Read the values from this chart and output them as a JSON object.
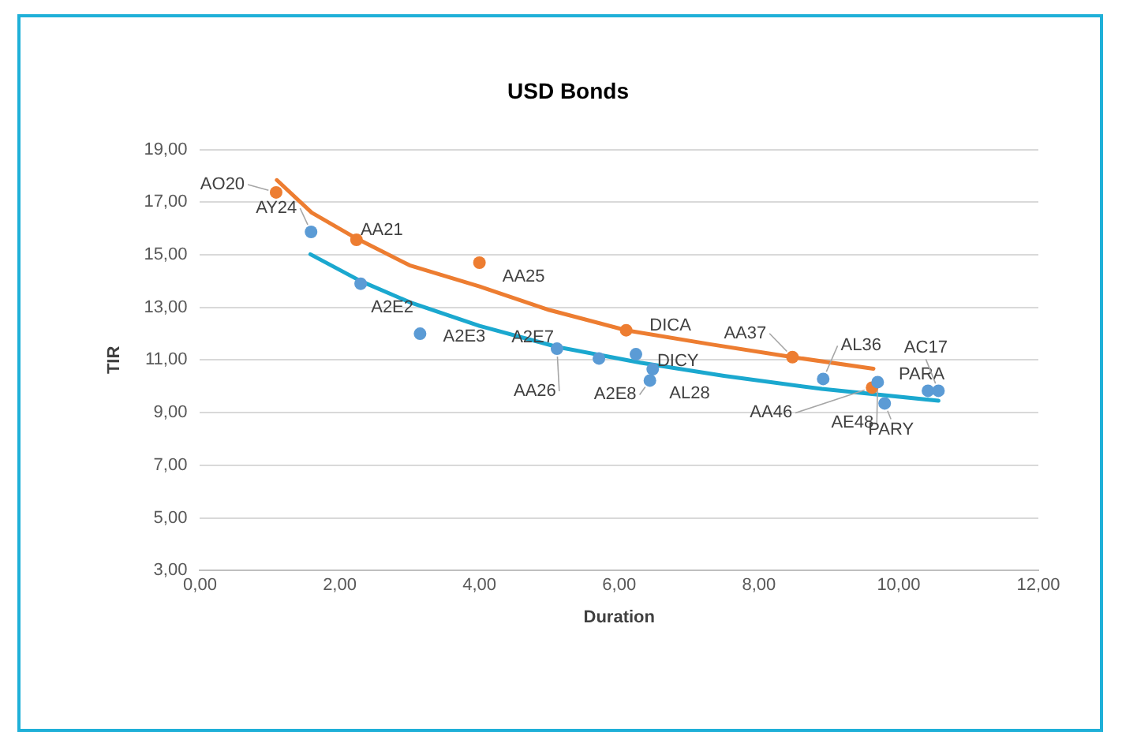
{
  "chart_data": {
    "type": "scatter",
    "title": "USD Bonds",
    "xlabel": "Duration",
    "ylabel": "TIR",
    "xlim": [
      0,
      12
    ],
    "xticks": [
      {
        "value": 0,
        "label": "0,00"
      },
      {
        "value": 2,
        "label": "2,00"
      },
      {
        "value": 4,
        "label": "4,00"
      },
      {
        "value": 6,
        "label": "6,00"
      },
      {
        "value": 8,
        "label": "8,00"
      },
      {
        "value": 10,
        "label": "10,00"
      },
      {
        "value": 12,
        "label": "12,00"
      }
    ],
    "ylim": [
      3,
      19
    ],
    "yticks": [
      {
        "value": 3,
        "label": "3,00"
      },
      {
        "value": 5,
        "label": "5,00"
      },
      {
        "value": 7,
        "label": "7,00"
      },
      {
        "value": 9,
        "label": "9,00"
      },
      {
        "value": 11,
        "label": "11,00"
      },
      {
        "value": 13,
        "label": "13,00"
      },
      {
        "value": 15,
        "label": "15,00"
      },
      {
        "value": 17,
        "label": "17,00"
      },
      {
        "value": 19,
        "label": "19,00"
      }
    ],
    "grid": "y",
    "legend": false,
    "marker": "circle",
    "series": [
      {
        "color": "#5b9bd5",
        "x": [
          1.59,
          2.3,
          3.15,
          5.11,
          5.71,
          6.24,
          6.48,
          6.44,
          8.92,
          9.7,
          9.8,
          10.42,
          10.57
        ],
        "values": [
          15.87,
          13.9,
          12.0,
          11.43,
          11.06,
          11.22,
          10.65,
          10.22,
          10.28,
          10.16,
          9.35,
          9.83,
          9.83
        ]
      },
      {
        "color": "#ed7d31",
        "x": [
          1.09,
          2.24,
          4.0,
          6.1,
          8.48,
          9.62
        ],
        "values": [
          17.37,
          15.57,
          14.7,
          12.13,
          11.11,
          9.95
        ]
      },
      {
        "type": "line",
        "color": "#ed7d31",
        "marker": "none",
        "x": [
          1.1,
          1.6,
          2.24,
          3,
          4,
          5,
          6.1,
          7.3,
          8.48,
          9.64
        ],
        "values": [
          17.84,
          16.6,
          15.62,
          14.6,
          13.8,
          12.9,
          12.13,
          11.6,
          11.11,
          10.67
        ]
      },
      {
        "type": "line",
        "color": "#1ba8cf",
        "marker": "none",
        "x": [
          1.58,
          2.3,
          3,
          4,
          5.11,
          6.3,
          7.5,
          8.9,
          10.57
        ],
        "values": [
          15.02,
          14.0,
          13.2,
          12.3,
          11.5,
          10.9,
          10.4,
          9.9,
          9.45
        ]
      }
    ],
    "annotations": [
      {
        "text": "AO20",
        "x": 1.09,
        "y": 17.37
      },
      {
        "text": "AY24",
        "x": 1.59,
        "y": 15.87
      },
      {
        "text": "AA21",
        "x": 2.24,
        "y": 15.57
      },
      {
        "text": "AA25",
        "x": 4.0,
        "y": 14.7
      },
      {
        "text": "A2E2",
        "x": 2.3,
        "y": 13.9
      },
      {
        "text": "A2E3",
        "x": 3.15,
        "y": 12.0
      },
      {
        "text": "A2E7",
        "x": 5.71,
        "y": 11.06
      },
      {
        "text": "AA26",
        "x": 5.11,
        "y": 11.43
      },
      {
        "text": "DICA",
        "x": 6.1,
        "y": 12.13
      },
      {
        "text": "DICY",
        "x": 6.48,
        "y": 10.65
      },
      {
        "text": "A2E8",
        "x": 6.44,
        "y": 10.22
      },
      {
        "text": "AL28",
        "x": 6.24,
        "y": 11.22
      },
      {
        "text": "AA37",
        "x": 8.48,
        "y": 11.11
      },
      {
        "text": "AL36",
        "x": 8.92,
        "y": 10.28
      },
      {
        "text": "AA46",
        "x": 9.62,
        "y": 9.95
      },
      {
        "text": "AE48",
        "x": 9.7,
        "y": 10.16
      },
      {
        "text": "PARY",
        "x": 9.8,
        "y": 9.35
      },
      {
        "text": "PARA",
        "x": 10.42,
        "y": 9.83
      },
      {
        "text": "AC17",
        "x": 10.57,
        "y": 9.83
      }
    ]
  }
}
